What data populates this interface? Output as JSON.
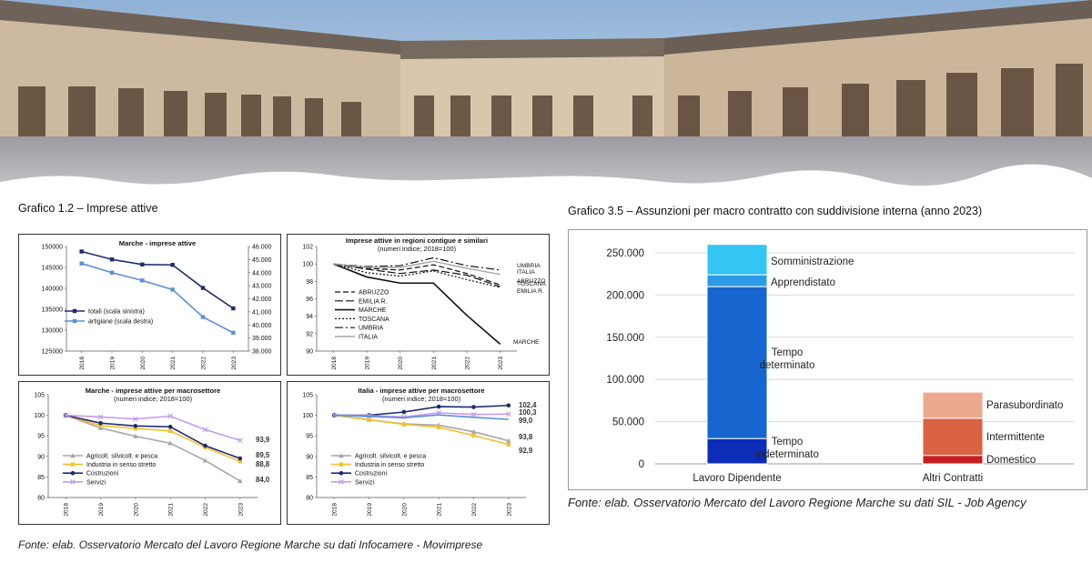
{
  "caption_left": "Grafico 1.2 – Imprese attive",
  "caption_right": "Grafico 3.5 – Assunzioni per macro contratto con suddivisione interna (anno 2023)",
  "source_left": "Fonte: elab. Osservatorio Mercato del Lavoro Regione Marche su dati Infocamere - Movimprese",
  "source_right": "Fonte: elab. Osservatorio Mercato del Lavoro Regione Marche su dati SIL - Job Agency",
  "colors": {
    "navy": "#1f2a6e",
    "steel": "#5b8fd6",
    "black": "#111111",
    "gray": "#a6a6a6",
    "gold": "#f2c12e",
    "violet": "#c39bf0",
    "somm": "#33c6f2",
    "appr": "#2b9be6",
    "det": "#1766cf",
    "indet": "#0d2db8",
    "para": "#eda98e",
    "inter": "#db6243",
    "dome": "#c41e1e"
  },
  "chart_data": [
    {
      "id": "c1",
      "type": "line",
      "title": "Marche - imprese attive",
      "x": [
        "2018",
        "2019",
        "2020",
        "2021",
        "2022",
        "2023"
      ],
      "ylim": [
        125000,
        150000
      ],
      "y_ticks": [
        "125000",
        "130000",
        "135000",
        "140000",
        "145000",
        "150000"
      ],
      "y2lim": [
        38000,
        46000
      ],
      "y2_ticks": [
        "38.000",
        "39.000",
        "40.000",
        "41.000",
        "42.000",
        "43.000",
        "44.000",
        "45.000",
        "46.000"
      ],
      "series": [
        {
          "name": "totali (scala sinistra)",
          "axis": "left",
          "color": "navy",
          "values": [
            148800,
            146900,
            145700,
            145600,
            140100,
            135200
          ]
        },
        {
          "name": "artigiane (scala destra)",
          "axis": "right",
          "color": "steel",
          "values": [
            44700,
            44000,
            43400,
            42700,
            40600,
            39400
          ]
        }
      ],
      "legend": "bottom-left"
    },
    {
      "id": "c2",
      "type": "line",
      "title": "Imprese attive in regioni contigue e similari",
      "subtitle": "(numeri indice; 2018=100)",
      "x": [
        "2018",
        "2019",
        "2020",
        "2021",
        "2022",
        "2023"
      ],
      "ylim": [
        90,
        102
      ],
      "y_ticks": [
        "90",
        "92",
        "94",
        "96",
        "98",
        "100",
        "102"
      ],
      "series": [
        {
          "name": "ABRUZZO",
          "dash": "6,3",
          "width": 1.2,
          "color": "black",
          "values": [
            100,
            99.5,
            99.3,
            99.9,
            98.9,
            97.6
          ]
        },
        {
          "name": "EMILIA R.",
          "dash": "9,3",
          "width": 1.2,
          "color": "black",
          "values": [
            100,
            99.4,
            98.9,
            99.3,
            98.7,
            97.4
          ]
        },
        {
          "name": "MARCHE",
          "dash": "",
          "width": 1.6,
          "color": "black",
          "values": [
            100,
            98.5,
            97.8,
            97.8,
            94.1,
            90.8
          ]
        },
        {
          "name": "TOSCANA",
          "dash": "2,2",
          "width": 1.2,
          "color": "black",
          "values": [
            100,
            99.0,
            98.6,
            99.2,
            98.2,
            97.3
          ]
        },
        {
          "name": "UMBRIA",
          "dash": "9,3,2,3",
          "width": 1.2,
          "color": "black",
          "values": [
            100,
            99.7,
            99.8,
            100.7,
            99.8,
            99.3
          ]
        },
        {
          "name": "ITALIA",
          "dash": "",
          "width": 1.4,
          "color": "gray",
          "values": [
            100,
            99.6,
            99.6,
            100.3,
            99.5,
            98.8
          ]
        }
      ],
      "end_labels": [
        "UMBRIA",
        "ITALIA",
        "ABRUZZO",
        "TOSCANA",
        "EMILIA R.",
        "MARCHE"
      ],
      "legend": "bottom-left"
    },
    {
      "id": "c3",
      "type": "line",
      "title": "Marche - imprese attive per macrosettore",
      "subtitle": "(numeri indice; 2018=100)",
      "x": [
        "2018",
        "2019",
        "2020",
        "2021",
        "2022",
        "2023"
      ],
      "ylim": [
        80,
        105
      ],
      "y_ticks": [
        "80",
        "85",
        "90",
        "95",
        "100",
        "105"
      ],
      "series": [
        {
          "name": "Agricolt. silvicolt. e pesca",
          "color": "gray",
          "marker": "triangle",
          "values": [
            100,
            96.9,
            94.9,
            93.2,
            89.0,
            84.0
          ]
        },
        {
          "name": "Industria in senso stretto",
          "color": "gold",
          "marker": "square",
          "values": [
            100,
            97.5,
            96.8,
            96.2,
            92.2,
            88.8
          ]
        },
        {
          "name": "Costruzioni",
          "color": "navy",
          "marker": "circle",
          "values": [
            100,
            98.1,
            97.4,
            97.2,
            92.6,
            89.5
          ]
        },
        {
          "name": "Servizi",
          "color": "violet",
          "marker": "x",
          "values": [
            100,
            99.6,
            99.1,
            99.8,
            96.5,
            93.9
          ]
        }
      ],
      "value_labels": [
        "93,9",
        "89,5",
        "88,8",
        "84,0"
      ],
      "legend": "bottom-left"
    },
    {
      "id": "c4",
      "type": "line",
      "title": "Italia - imprese attive per macrosettore",
      "subtitle": "(numeri indice; 2018=100)",
      "x": [
        "2018",
        "2019",
        "2020",
        "2021",
        "2022",
        "2023"
      ],
      "ylim": [
        80,
        105
      ],
      "y_ticks": [
        "80",
        "85",
        "90",
        "95",
        "100",
        "105"
      ],
      "series": [
        {
          "name": "Agricolt. silvicolt. e pesca",
          "color": "gray",
          "marker": "triangle",
          "values": [
            100,
            98.9,
            97.9,
            97.6,
            96.0,
            93.8
          ]
        },
        {
          "name": "Industria in senso stretto",
          "color": "gold",
          "marker": "square",
          "values": [
            100,
            98.9,
            97.8,
            97.1,
            95.1,
            92.9
          ]
        },
        {
          "name": "Costruzioni",
          "color": "navy",
          "marker": "circle",
          "values": [
            100,
            100.0,
            100.8,
            102.1,
            102.0,
            102.4
          ]
        },
        {
          "name": "Servizi",
          "color": "violet",
          "marker": "x",
          "values": [
            100,
            99.9,
            99.6,
            100.6,
            100.2,
            100.3
          ]
        },
        {
          "name": "",
          "color": "steel",
          "marker": "none",
          "values": [
            100,
            99.7,
            99.4,
            100.1,
            99.5,
            99.0
          ]
        }
      ],
      "value_labels": [
        "102,4",
        "100,3",
        "99,0",
        "93,8",
        "92,9"
      ],
      "legend": "bottom-left"
    },
    {
      "id": "c5",
      "type": "bar",
      "stacked": true,
      "categories": [
        "Lavoro Dipendente",
        "Altri Contratti"
      ],
      "ylim": [
        0,
        250000
      ],
      "y_ticks": [
        "0",
        "50.000",
        "100.000",
        "150.000",
        "200.000",
        "250.000"
      ],
      "stacks": [
        {
          "category": "Lavoro Dipendente",
          "segments": [
            {
              "name": "Tempo indeterminato",
              "value": 30000,
              "color": "indet"
            },
            {
              "name": "Tempo determinato",
              "value": 180000,
              "color": "det"
            },
            {
              "name": "Apprendistato",
              "value": 14000,
              "color": "appr"
            },
            {
              "name": "Somministrazione",
              "value": 36000,
              "color": "somm"
            }
          ]
        },
        {
          "category": "Altri Contratti",
          "segments": [
            {
              "name": "Domestico",
              "value": 10000,
              "color": "dome"
            },
            {
              "name": "Intermittente",
              "value": 44000,
              "color": "inter"
            },
            {
              "name": "Parasubordinato",
              "value": 31000,
              "color": "para"
            }
          ]
        }
      ],
      "grid": true
    }
  ]
}
